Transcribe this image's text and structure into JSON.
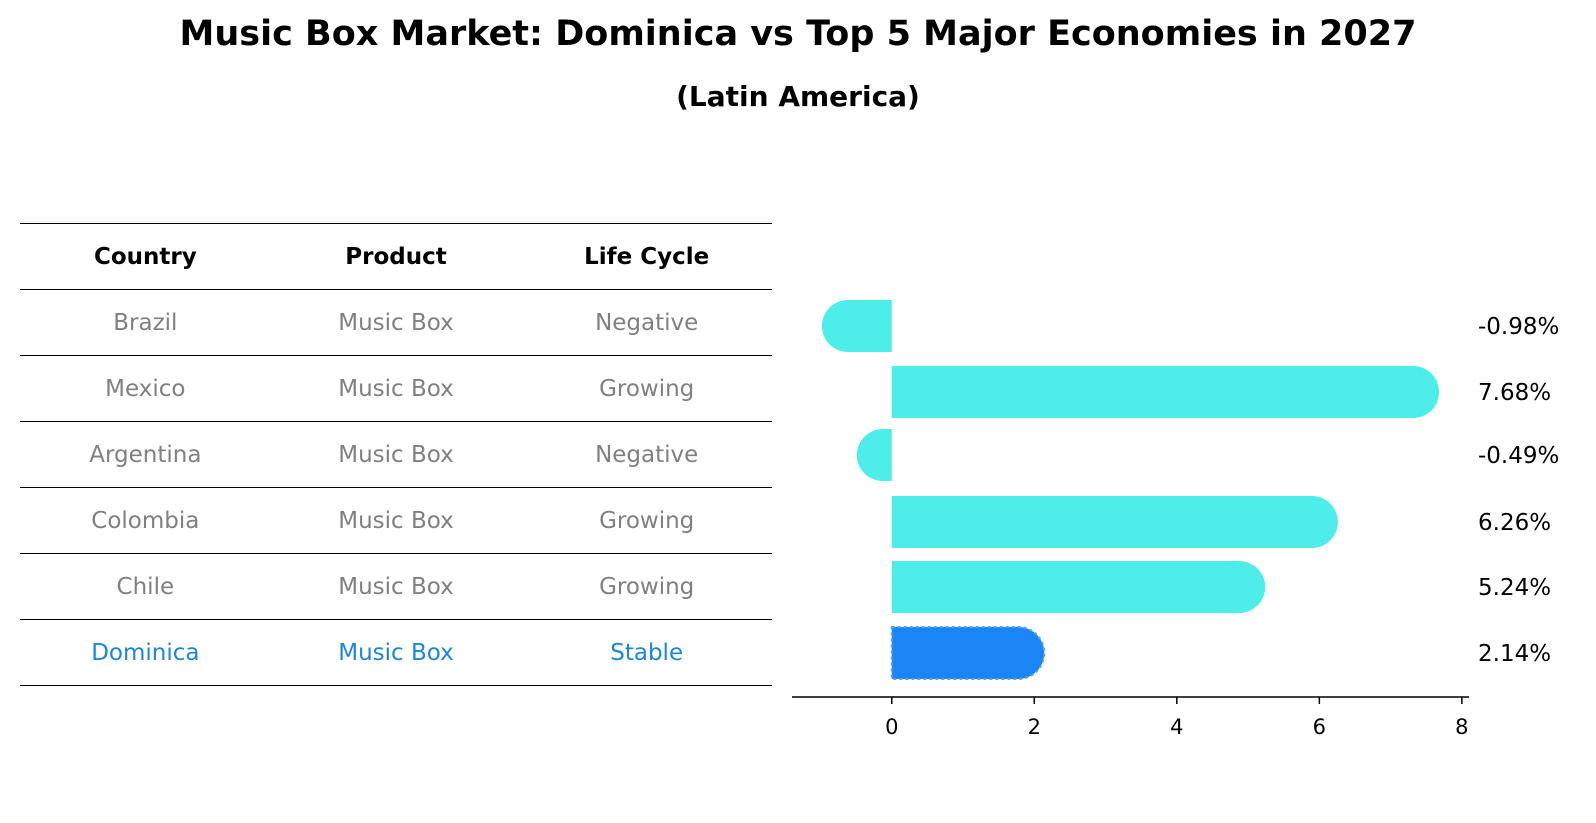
{
  "title": "Music Box Market: Dominica vs Top 5 Major Economies in 2027",
  "subtitle": "(Latin America)",
  "table": {
    "headers": [
      "Country",
      "Product",
      "Life Cycle"
    ],
    "rows": [
      [
        "Brazil",
        "Music Box",
        "Negative"
      ],
      [
        "Mexico",
        "Music Box",
        "Growing"
      ],
      [
        "Argentina",
        "Music Box",
        "Negative"
      ],
      [
        "Colombia",
        "Music Box",
        "Growing"
      ],
      [
        "Chile",
        "Music Box",
        "Growing"
      ],
      [
        "Dominica",
        "Music Box",
        "Stable"
      ]
    ],
    "highlight_row": 5
  },
  "chart_data": {
    "type": "bar",
    "orientation": "horizontal",
    "categories": [
      "Brazil",
      "Mexico",
      "Argentina",
      "Colombia",
      "Chile",
      "Dominica"
    ],
    "values": [
      -0.98,
      7.68,
      -0.49,
      6.26,
      5.24,
      2.14
    ],
    "value_labels": [
      "-0.98%",
      "7.68%",
      "-0.49%",
      "6.26%",
      "5.24%",
      "2.14%"
    ],
    "xlim": [
      -1.4,
      8.1
    ],
    "xticks": [
      0,
      2,
      4,
      6,
      8
    ],
    "grid": false,
    "colors": {
      "default": "#4deeea",
      "highlight": "#1a86f5"
    },
    "highlight_index": 5
  }
}
